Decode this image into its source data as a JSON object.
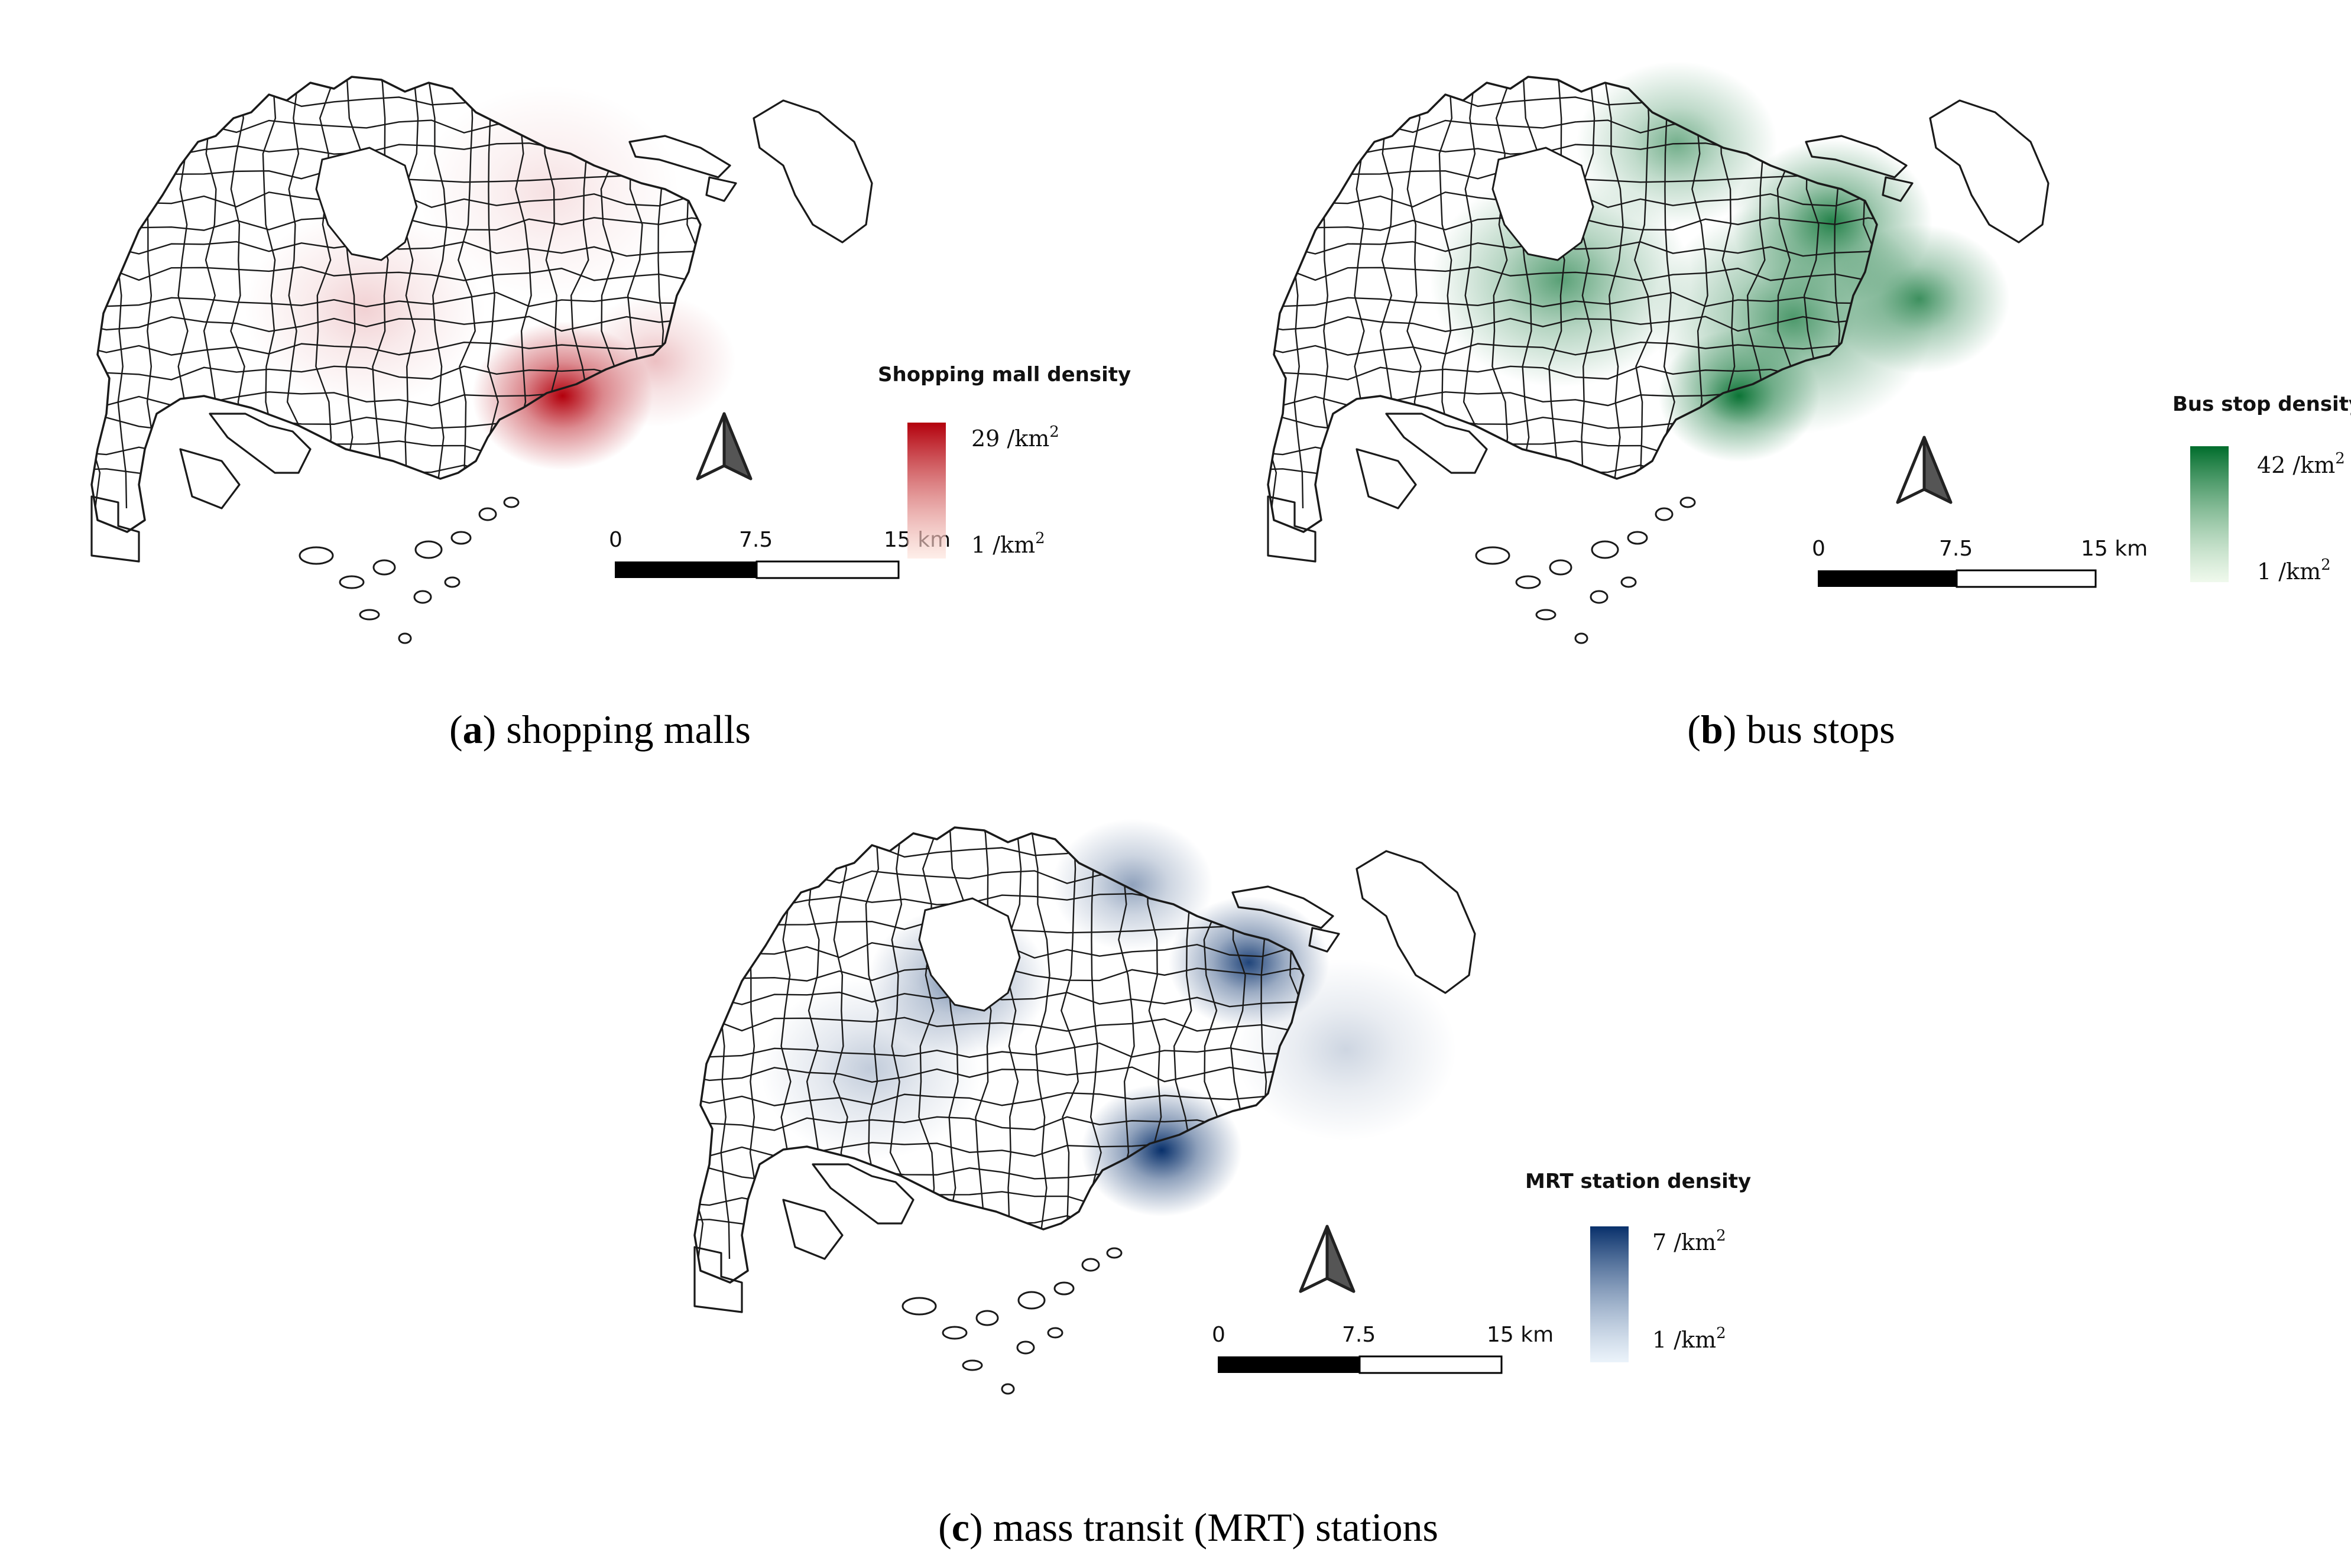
{
  "panels": [
    {
      "id": "a",
      "caption_letter": "a",
      "caption_text": "shopping malls",
      "legend_title": "Shopping mall density",
      "legend_max": "29 /km",
      "legend_min": "1 /km",
      "legend_sup": "2",
      "color": "#b3000c",
      "color_light": "#fde3da",
      "scale_labels": [
        "0",
        "7.5",
        "15 km"
      ],
      "hotspots": [
        {
          "lon": 103.852,
          "lat": 1.3,
          "intensity": 1.0,
          "spread": 0.9
        },
        {
          "lon": 103.9,
          "lat": 1.318,
          "intensity": 0.25,
          "spread": 0.8
        },
        {
          "lon": 103.75,
          "lat": 1.345,
          "intensity": 0.18,
          "spread": 1.2
        },
        {
          "lon": 103.845,
          "lat": 1.405,
          "intensity": 0.12,
          "spread": 1.3
        }
      ]
    },
    {
      "id": "b",
      "caption_letter": "b",
      "caption_text": "bus stops",
      "legend_title": "Bus stop density",
      "legend_max": "42 /km",
      "legend_min": "1 /km",
      "legend_sup": "2",
      "color": "#006d2c",
      "color_light": "#e5f5e0",
      "scale_labels": [
        "0",
        "7.5",
        "15 km"
      ],
      "hotspots": [
        {
          "lon": 103.852,
          "lat": 1.3,
          "intensity": 0.95,
          "spread": 0.8
        },
        {
          "lon": 103.9,
          "lat": 1.39,
          "intensity": 0.85,
          "spread": 1.0
        },
        {
          "lon": 103.945,
          "lat": 1.35,
          "intensity": 0.75,
          "spread": 0.9
        },
        {
          "lon": 103.76,
          "lat": 1.36,
          "intensity": 0.65,
          "spread": 1.3
        },
        {
          "lon": 103.82,
          "lat": 1.43,
          "intensity": 0.55,
          "spread": 1.0
        },
        {
          "lon": 103.88,
          "lat": 1.34,
          "intensity": 0.7,
          "spread": 1.4
        }
      ]
    },
    {
      "id": "c",
      "caption_letter": "c",
      "caption_text": "mass transit (MRT) stations",
      "legend_title": "MRT station density",
      "legend_max": "7 /km",
      "legend_min": "1 /km",
      "legend_sup": "2",
      "color": "#08306b",
      "color_light": "#deebf7",
      "scale_labels": [
        "0",
        "7.5",
        "15 km"
      ],
      "hotspots": [
        {
          "lon": 103.85,
          "lat": 1.298,
          "intensity": 1.0,
          "spread": 0.8
        },
        {
          "lon": 103.895,
          "lat": 1.395,
          "intensity": 0.9,
          "spread": 0.8
        },
        {
          "lon": 103.745,
          "lat": 1.385,
          "intensity": 0.55,
          "spread": 0.9
        },
        {
          "lon": 103.835,
          "lat": 1.435,
          "intensity": 0.45,
          "spread": 0.8
        },
        {
          "lon": 103.7,
          "lat": 1.34,
          "intensity": 0.25,
          "spread": 1.1
        },
        {
          "lon": 103.945,
          "lat": 1.35,
          "intensity": 0.2,
          "spread": 1.1
        }
      ]
    }
  ]
}
